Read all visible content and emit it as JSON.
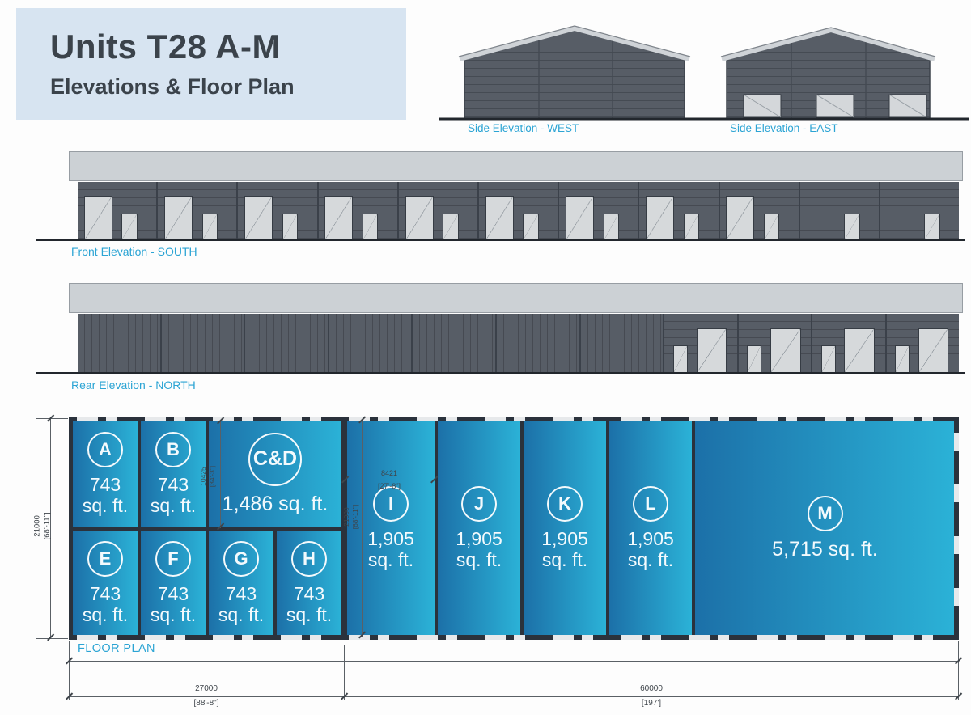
{
  "title": {
    "line1": "Units T28 A-M",
    "line2": "Elevations & Floor Plan"
  },
  "labels": {
    "side_west": "Side Elevation - WEST",
    "side_east": "Side Elevation - EAST",
    "front": "Front Elevation - SOUTH",
    "rear": "Rear Elevation - NORTH",
    "floor_plan": "FLOOR PLAN"
  },
  "colors": {
    "accent_cyan": "#2ba4d4",
    "title_bg": "#d7e4f1",
    "wall_gray": "#575d66",
    "parapet_gray": "#ccd1d5",
    "door_gray": "#d6d9db",
    "plan_wall": "#2b323c",
    "plan_blue_dark": "#1c70a8",
    "plan_blue_light": "#2bb2d7"
  },
  "elevations": {
    "front": {
      "door_pair_bays": 9,
      "small_door_bays": 2
    },
    "rear": {
      "blank_sections": 7,
      "door_pair_bays": 4
    },
    "side_east_windows": 3
  },
  "units": {
    "top": [
      {
        "id": "A",
        "area_line1": "743",
        "area_line2": "sq. ft."
      },
      {
        "id": "B",
        "area_line1": "743",
        "area_line2": "sq. ft."
      },
      {
        "id": "C&D",
        "area_single": "1,486 sq. ft."
      }
    ],
    "bottom": [
      {
        "id": "E",
        "area_line1": "743",
        "area_line2": "sq. ft."
      },
      {
        "id": "F",
        "area_line1": "743",
        "area_line2": "sq. ft."
      },
      {
        "id": "G",
        "area_line1": "743",
        "area_line2": "sq. ft."
      },
      {
        "id": "H",
        "area_line1": "743",
        "area_line2": "sq. ft."
      }
    ],
    "right": [
      {
        "id": "I",
        "area_line1": "1,905",
        "area_line2": "sq. ft."
      },
      {
        "id": "J",
        "area_line1": "1,905",
        "area_line2": "sq. ft."
      },
      {
        "id": "K",
        "area_line1": "1,905",
        "area_line2": "sq. ft."
      },
      {
        "id": "L",
        "area_line1": "1,905",
        "area_line2": "sq. ft."
      },
      {
        "id": "M",
        "area_single": "5,715 sq. ft."
      }
    ]
  },
  "dimensions": {
    "plan_height": {
      "mm": "21000",
      "imperial": "[68'-11\"]"
    },
    "cd_height": {
      "mm": "10425",
      "imperial": "[34'-3\"]"
    },
    "unit_i_width": {
      "mm": "8421",
      "imperial": "[27'-8\"]"
    },
    "unit_i_height": {
      "mm": "21000",
      "imperial": "[68'-11\"]"
    },
    "left_section_width": {
      "mm": "27000",
      "imperial": "[88'-8\"]"
    },
    "right_section_width": {
      "mm": "60000",
      "imperial": "[197']"
    }
  }
}
